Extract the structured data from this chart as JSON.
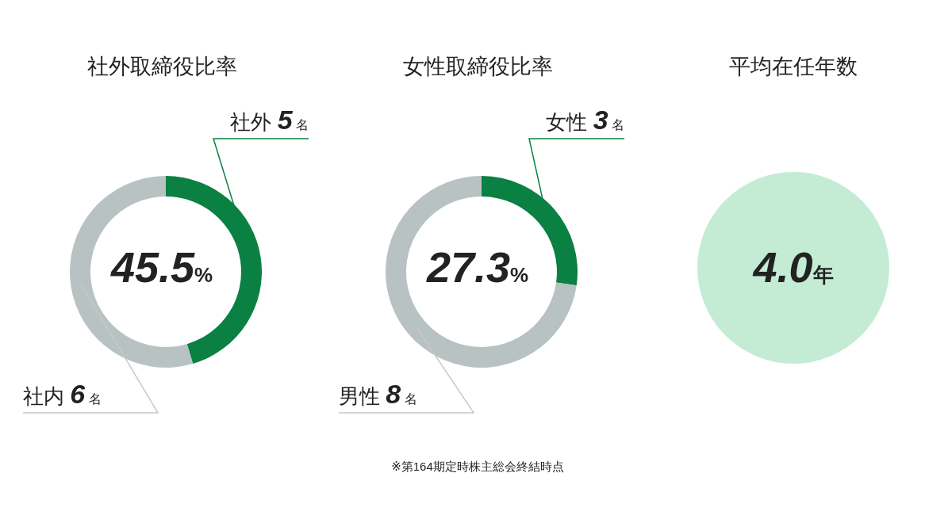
{
  "chart_data": [
    {
      "type": "donut",
      "title": "社外取締役比率",
      "categories": [
        "社外",
        "社内"
      ],
      "values": [
        5,
        6
      ],
      "colors": [
        "#0a8043",
        "#b9c2c2"
      ],
      "value_labels": [
        "5名",
        "6名"
      ],
      "annotations": [
        "45.5%"
      ]
    },
    {
      "type": "donut",
      "title": "女性取締役比率",
      "categories": [
        "女性",
        "男性"
      ],
      "values": [
        3,
        8
      ],
      "colors": [
        "#0a8043",
        "#b9c2c2"
      ],
      "value_labels": [
        "3名",
        "8名"
      ],
      "annotations": [
        "27.3%",
        "※第164期定時株主総会終結時点"
      ]
    },
    {
      "type": "other",
      "title": "平均在任年数",
      "annotations": [
        "4.0年"
      ]
    }
  ]
}
